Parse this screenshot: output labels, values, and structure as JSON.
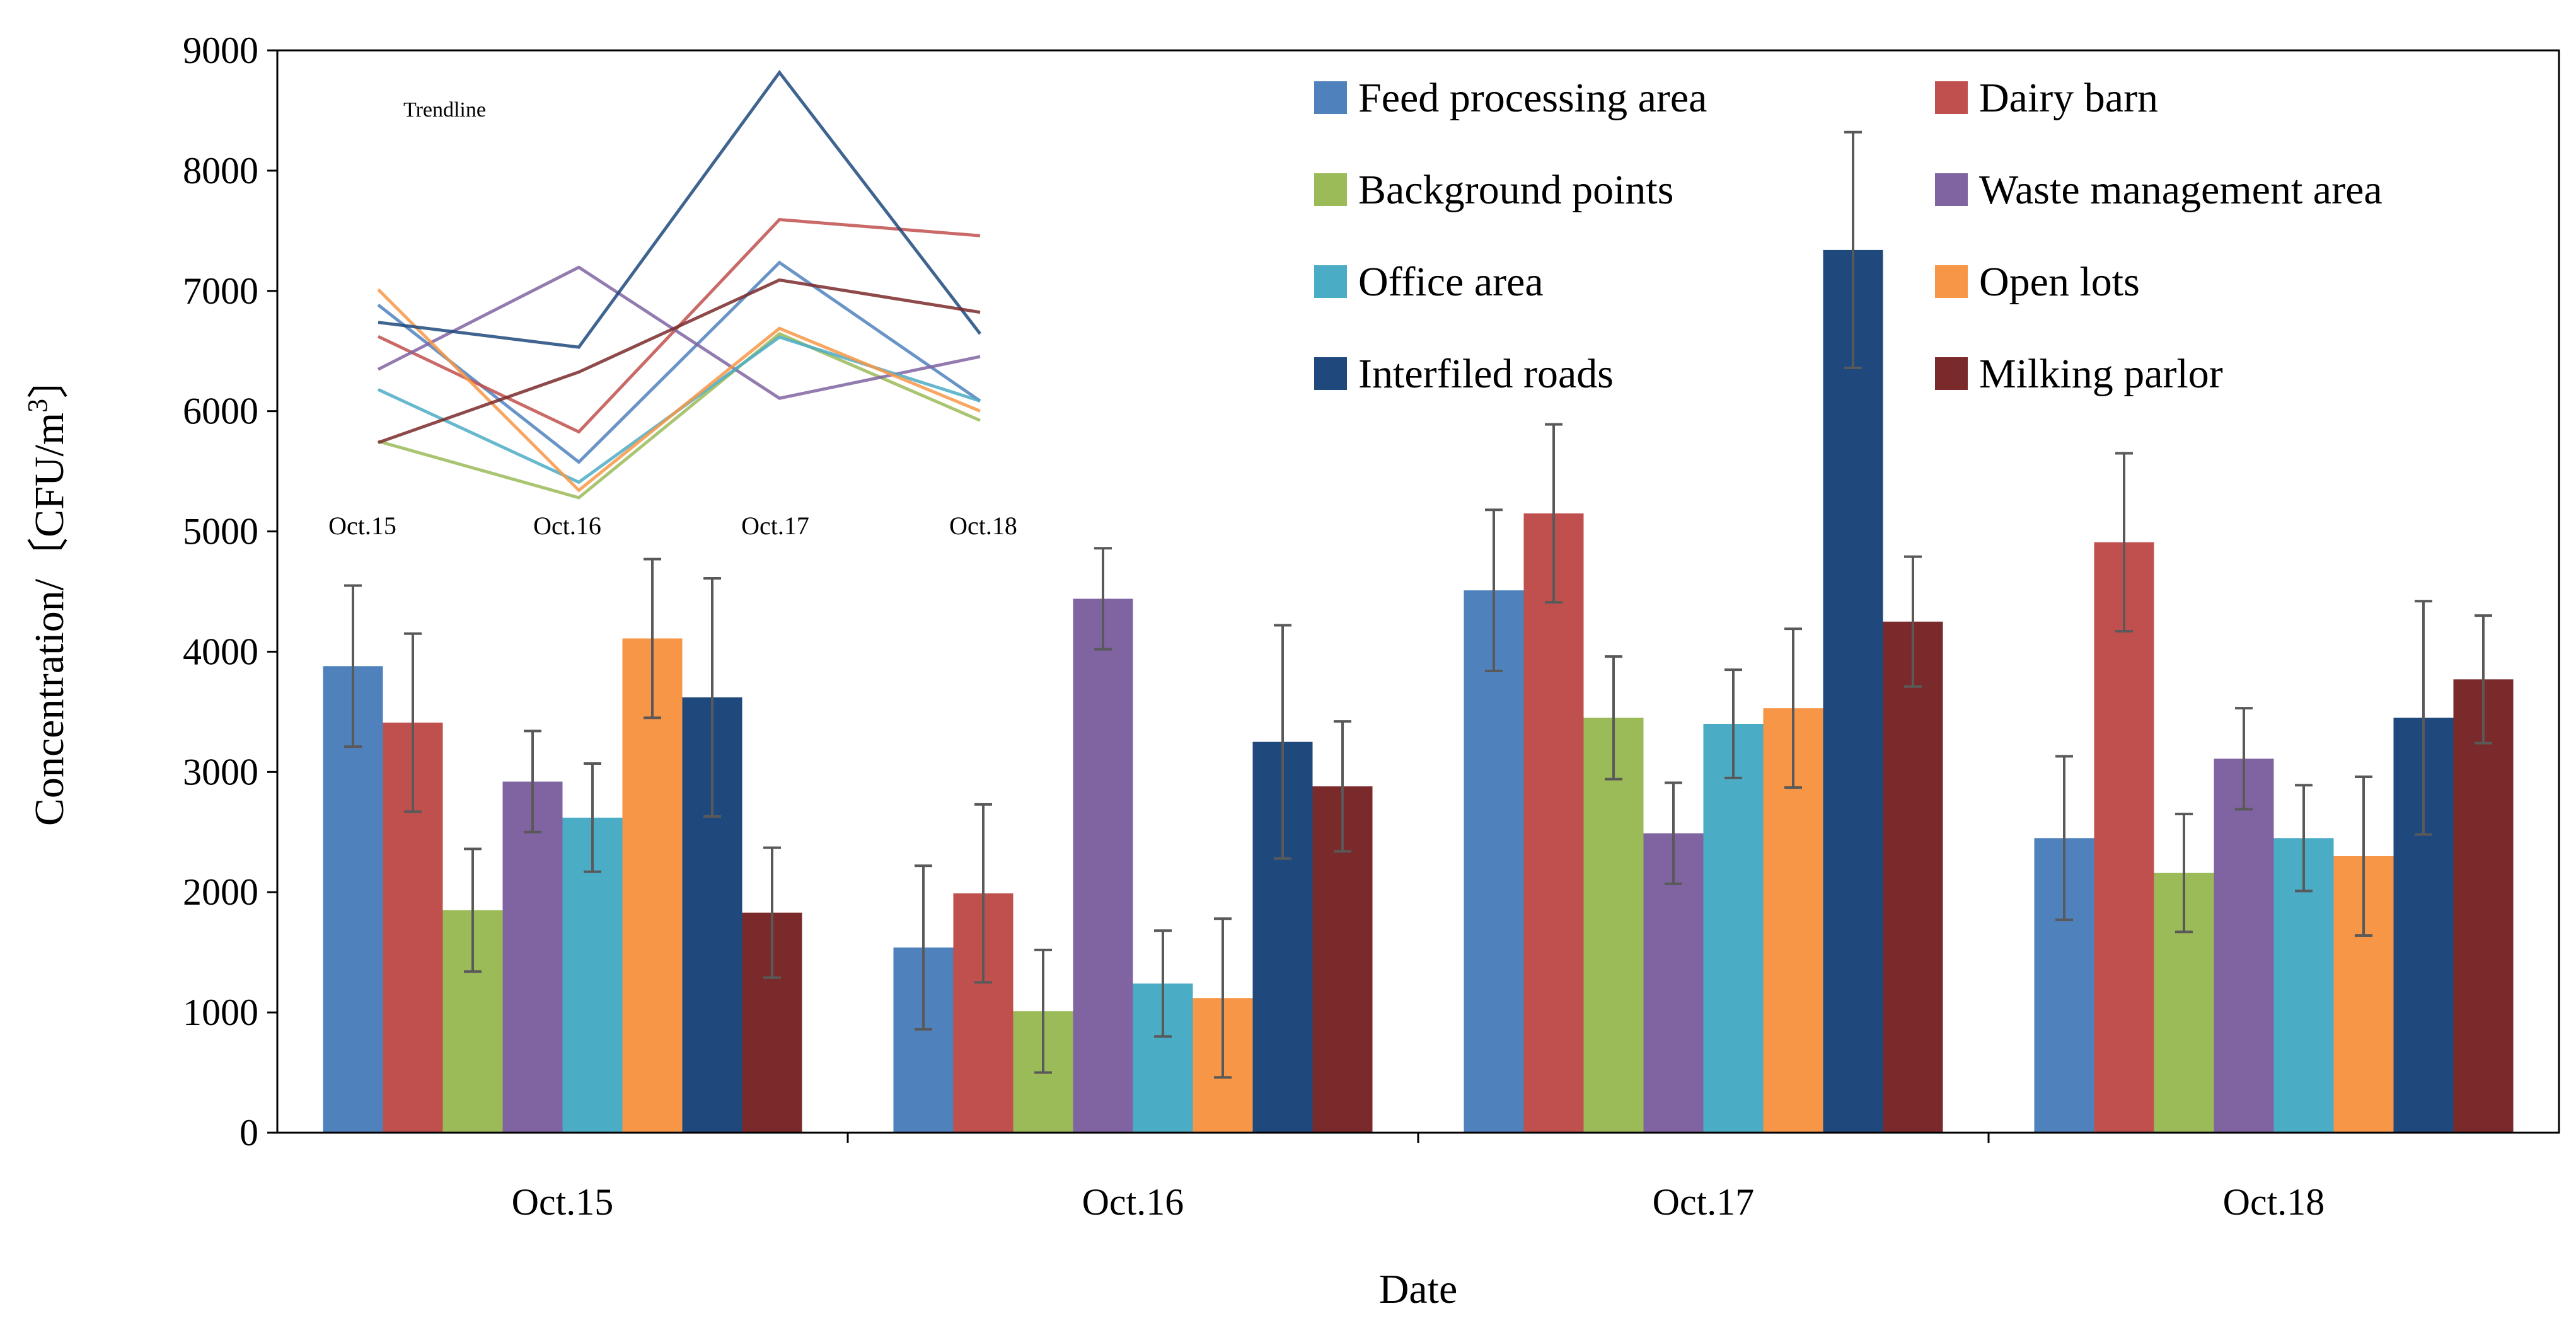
{
  "chart_data": {
    "type": "bar",
    "title": "",
    "xlabel": "Date",
    "ylabel_main": "Concentration/〔CFU/m",
    "ylabel_sup": "3",
    "ylabel_close": "〕",
    "ylim": [
      0,
      9000
    ],
    "ytick_step": 1000,
    "yticks": [
      "0",
      "1000",
      "2000",
      "3000",
      "4000",
      "5000",
      "6000",
      "7000",
      "8000",
      "9000"
    ],
    "categories": [
      "Oct.15",
      "Oct.16",
      "Oct.17",
      "Oct.18"
    ],
    "legend_position": "top-right",
    "series": [
      {
        "name": "Feed processing area",
        "color": "#4F81BD",
        "values": [
          3880,
          1540,
          4510,
          2450
        ],
        "errors": [
          670,
          680,
          670,
          680
        ]
      },
      {
        "name": "Dairy barn",
        "color": "#C0504D",
        "values": [
          3410,
          1990,
          5150,
          4910
        ],
        "errors": [
          740,
          740,
          740,
          740
        ]
      },
      {
        "name": "Background points",
        "color": "#9BBB59",
        "values": [
          1850,
          1010,
          3450,
          2160
        ],
        "errors": [
          510,
          510,
          510,
          490
        ]
      },
      {
        "name": "Waste management area",
        "color": "#8064A2",
        "values": [
          2920,
          4440,
          2490,
          3110
        ],
        "errors": [
          420,
          420,
          420,
          420
        ]
      },
      {
        "name": "Office area",
        "color": "#4BACC6",
        "values": [
          2620,
          1240,
          3400,
          2450
        ],
        "errors": [
          450,
          440,
          450,
          440
        ]
      },
      {
        "name": "Open lots",
        "color": "#F79646",
        "values": [
          4110,
          1120,
          3530,
          2300
        ],
        "errors": [
          660,
          660,
          660,
          660
        ]
      },
      {
        "name": "Interfiled roads",
        "color": "#1F497D",
        "values": [
          3620,
          3250,
          7340,
          3450
        ],
        "errors": [
          990,
          970,
          980,
          970
        ]
      },
      {
        "name": "Milking parlor",
        "color": "#7A2A2A",
        "values": [
          1830,
          2880,
          4250,
          3770
        ],
        "errors": [
          540,
          540,
          540,
          530
        ]
      }
    ],
    "inset": {
      "title": "Trendline",
      "type": "line",
      "categories": [
        "Oct.15",
        "Oct.16",
        "Oct.17",
        "Oct.18"
      ],
      "note": "trend of the same series values"
    }
  }
}
